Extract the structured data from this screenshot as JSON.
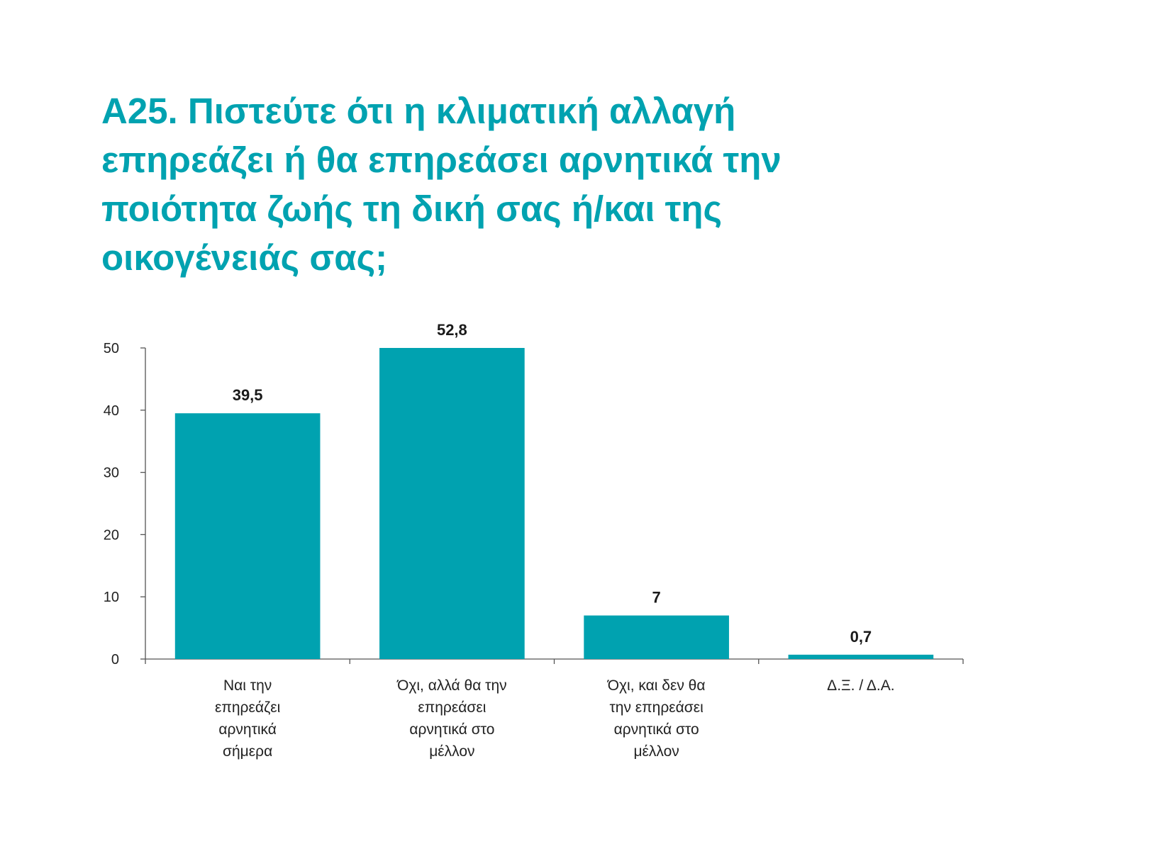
{
  "chart_data": {
    "type": "bar",
    "title": "Α25. Πιστεύτε ότι η κλιματική αλλαγή επηρεάζει ή θα επηρεάσει αρνητικά την ποιότητα ζωής τη δική σας ή/και της οικογένειάς σας;",
    "categories": [
      [
        "Ναι την",
        "επηρεάζει",
        "αρνητικά",
        "σήμερα"
      ],
      [
        "Όχι, αλλά θα την",
        "επηρεάσει",
        "αρνητικά στο",
        "μέλλον"
      ],
      [
        "Όχι, και δεν θα",
        "την επηρεάσει",
        "αρνητικά στο",
        "μέλλον"
      ],
      [
        "Δ.Ξ. / Δ.Α."
      ]
    ],
    "values": [
      39.5,
      52.8,
      7,
      0.7
    ],
    "value_labels": [
      "39,5",
      "52,8",
      "7",
      "0,7"
    ],
    "y_ticks": [
      0,
      10,
      20,
      30,
      40,
      50
    ],
    "ylim": [
      0,
      50
    ],
    "xlabel": "",
    "ylabel": "",
    "bar_color": "#00a2b0",
    "grid": false,
    "legend": "none"
  },
  "colors": {
    "accent": "#00a2b0",
    "axis": "#555555"
  }
}
